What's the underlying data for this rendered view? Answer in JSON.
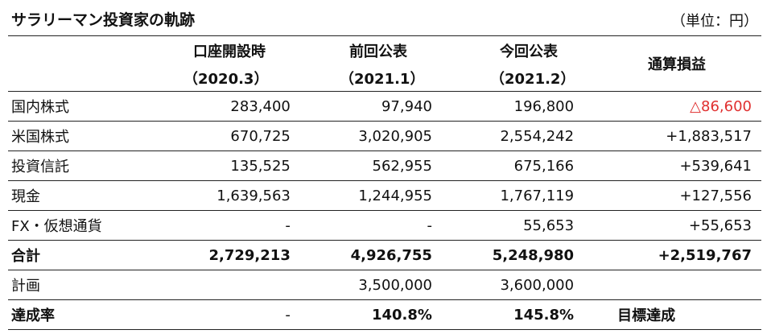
{
  "title": "サラリーマン投資家の軌跡",
  "unit": "（単位：円）",
  "columns": [
    {
      "label": "口座開設時",
      "sub": "（2020.3）"
    },
    {
      "label": "前回公表",
      "sub": "（2021.1）"
    },
    {
      "label": "今回公表",
      "sub": "（2021.2）"
    },
    {
      "label": "通算損益",
      "sub": ""
    }
  ],
  "rows": [
    {
      "label": "国内株式",
      "values": [
        "283,400",
        "97,940",
        "196,800",
        "△86,600"
      ]
    },
    {
      "label": "米国株式",
      "values": [
        "670,725",
        "3,020,905",
        "2,554,242",
        "+1,883,517"
      ]
    },
    {
      "label": "投資信託",
      "values": [
        "135,525",
        "562,955",
        "675,166",
        "+539,641"
      ]
    },
    {
      "label": "現金",
      "values": [
        "1,639,563",
        "1,244,955",
        "1,767,119",
        "+127,556"
      ]
    },
    {
      "label": "FX・仮想通貨",
      "values": [
        "-",
        "-",
        "55,653",
        "+55,653"
      ]
    },
    {
      "label": "合計",
      "values": [
        "2,729,213",
        "4,926,755",
        "5,248,980",
        "+2,519,767"
      ]
    },
    {
      "label": "計画",
      "values": [
        "",
        "3,500,000",
        "3,600,000",
        ""
      ]
    },
    {
      "label": "達成率",
      "values": [
        "-",
        "140.8%",
        "145.8%",
        "目標達成"
      ]
    }
  ],
  "colors": {
    "negative": "#e03030",
    "text": "#111111",
    "rule": "#222222"
  }
}
